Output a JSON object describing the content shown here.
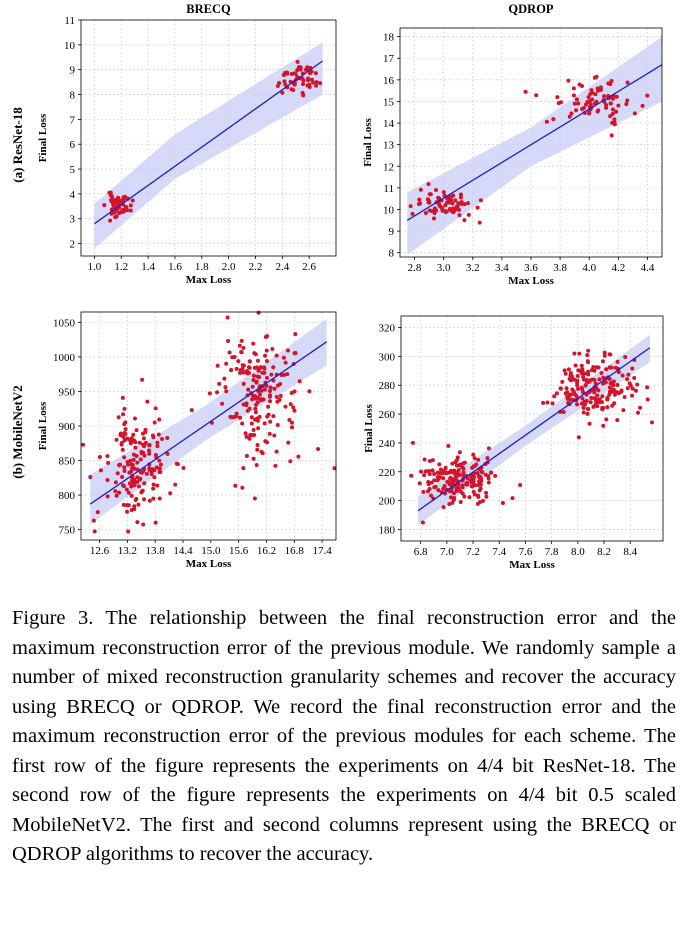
{
  "chart_data": [
    {
      "type": "scatter",
      "title": "BRECQ",
      "row_label": "(a) ResNet-18",
      "xlabel": "Max Loss",
      "ylabel": "Final Loss",
      "xlim": [
        0.9,
        2.8
      ],
      "ylim": [
        1.5,
        11
      ],
      "xticks": [
        1.0,
        1.2,
        1.4,
        1.6,
        1.8,
        2.0,
        2.2,
        2.4,
        2.6
      ],
      "xtick_labels": [
        "1.0",
        "1.2",
        "1.4",
        "1.6",
        "1.8",
        "2.0",
        "2.2",
        "2.4",
        "2.6"
      ],
      "yticks": [
        2,
        3,
        4,
        5,
        6,
        7,
        8,
        9,
        10,
        11
      ],
      "ytick_labels": [
        "2",
        "3",
        "4",
        "5",
        "6",
        "7",
        "8",
        "9",
        "10",
        "11"
      ],
      "regression": {
        "x": [
          1.0,
          2.7
        ],
        "y": [
          2.8,
          9.35
        ]
      },
      "band": {
        "x": [
          1.0,
          1.6,
          2.7
        ],
        "lower": [
          1.8,
          4.6,
          8.0
        ],
        "upper": [
          3.6,
          6.4,
          10.1
        ]
      },
      "clusters": [
        {
          "cx": 1.18,
          "cy": 3.55,
          "sx": 0.045,
          "sy": 0.22,
          "n": 60,
          "seed": 11
        },
        {
          "cx": 2.52,
          "cy": 8.65,
          "sx": 0.07,
          "sy": 0.28,
          "n": 55,
          "seed": 12
        }
      ],
      "grid": true
    },
    {
      "type": "scatter",
      "title": "QDROP",
      "row_label": "(a) ResNet-18",
      "xlabel": "Max Loss",
      "ylabel": "Final Loss",
      "xlim": [
        2.7,
        4.5
      ],
      "ylim": [
        7.8,
        18.4
      ],
      "xticks": [
        2.8,
        3.0,
        3.2,
        3.4,
        3.6,
        3.8,
        4.0,
        4.2,
        4.4
      ],
      "xtick_labels": [
        "2.8",
        "3.0",
        "3.2",
        "3.4",
        "3.6",
        "3.8",
        "4.0",
        "4.2",
        "4.4"
      ],
      "yticks": [
        8,
        9,
        10,
        11,
        12,
        13,
        14,
        15,
        16,
        17,
        18
      ],
      "ytick_labels": [
        "8",
        "9",
        "10",
        "11",
        "12",
        "13",
        "14",
        "15",
        "16",
        "17",
        "18"
      ],
      "regression": {
        "x": [
          2.75,
          4.5
        ],
        "y": [
          9.5,
          16.7
        ]
      },
      "band": {
        "x": [
          2.75,
          3.6,
          4.5
        ],
        "lower": [
          7.9,
          12.0,
          15.0
        ],
        "upper": [
          10.8,
          13.8,
          18.0
        ]
      },
      "clusters": [
        {
          "cx": 3.0,
          "cy": 10.25,
          "sx": 0.1,
          "sy": 0.35,
          "n": 80,
          "seed": 21
        },
        {
          "cx": 4.03,
          "cy": 15.1,
          "sx": 0.15,
          "sy": 0.5,
          "n": 80,
          "seed": 22
        }
      ],
      "grid": true
    },
    {
      "type": "scatter",
      "title": "",
      "row_label": "(b) MobileNetV2",
      "xlabel": "Max Loss",
      "ylabel": "Final Loss",
      "xlim": [
        12.2,
        17.7
      ],
      "ylim": [
        735,
        1065
      ],
      "xticks": [
        12.6,
        13.2,
        13.8,
        14.4,
        15.0,
        15.6,
        16.2,
        16.8,
        17.4
      ],
      "xtick_labels": [
        "12.6",
        "13.2",
        "13.8",
        "14.4",
        "15.0",
        "15.6",
        "16.2",
        "16.8",
        "17.4"
      ],
      "yticks": [
        750,
        800,
        850,
        900,
        950,
        1000,
        1050
      ],
      "ytick_labels": [
        "750",
        "800",
        "850",
        "900",
        "950",
        "1000",
        "1050"
      ],
      "regression": {
        "x": [
          12.4,
          17.5
        ],
        "y": [
          787,
          1022
        ]
      },
      "band": {
        "x": [
          12.4,
          14.9,
          17.5
        ],
        "lower": [
          758,
          880,
          988
        ],
        "upper": [
          830,
          930,
          1055
        ]
      },
      "clusters": [
        {
          "cx": 13.4,
          "cy": 842,
          "sx": 0.35,
          "sy": 40,
          "n": 170,
          "seed": 31
        },
        {
          "cx": 16.0,
          "cy": 950,
          "sx": 0.45,
          "sy": 48,
          "n": 190,
          "seed": 32
        }
      ],
      "grid": true
    },
    {
      "type": "scatter",
      "title": "",
      "row_label": "(b) MobileNetV2",
      "xlabel": "Max Loss",
      "ylabel": "Final Loss",
      "xlim": [
        6.65,
        8.65
      ],
      "ylim": [
        172,
        328
      ],
      "xticks": [
        6.8,
        7.0,
        7.2,
        7.4,
        7.6,
        7.8,
        8.0,
        8.2,
        8.4
      ],
      "xtick_labels": [
        "6.8",
        "7.0",
        "7.2",
        "7.4",
        "7.6",
        "7.8",
        "8.0",
        "8.2",
        "8.4"
      ],
      "yticks": [
        180,
        200,
        220,
        240,
        260,
        280,
        300,
        320
      ],
      "ytick_labels": [
        "180",
        "200",
        "220",
        "240",
        "260",
        "280",
        "300",
        "320"
      ],
      "regression": {
        "x": [
          6.78,
          8.55
        ],
        "y": [
          193,
          306
        ]
      },
      "band": {
        "x": [
          6.78,
          7.6,
          8.55
        ],
        "lower": [
          183,
          238,
          296
        ],
        "upper": [
          203,
          252,
          315
        ]
      },
      "clusters": [
        {
          "cx": 7.1,
          "cy": 215,
          "sx": 0.14,
          "sy": 9,
          "n": 190,
          "seed": 41
        },
        {
          "cx": 8.12,
          "cy": 280,
          "sx": 0.17,
          "sy": 11,
          "n": 190,
          "seed": 42
        }
      ],
      "grid": true
    }
  ],
  "caption": "Figure 3. The relationship between the final reconstruction error and the maximum reconstruction error of the previous module. We randomly sample a number of mixed reconstruction granularity schemes and recover the accuracy using BRECQ or QDROP. We record the final reconstruction error and the maximum reconstruction error of the previous modules for each scheme. The first row of the figure represents the experiments on 4/4 bit ResNet-18. The second row of the figure represents the experiments on 4/4 bit 0.5 scaled MobileNetV2. The first and second columns represent using the BRECQ or QDROP algorithms to recover the accuracy.",
  "colors": {
    "points": "#d4142a",
    "line": "#1f1fc8",
    "band": "#c8ccf4",
    "grid": "#c8c8c8"
  }
}
